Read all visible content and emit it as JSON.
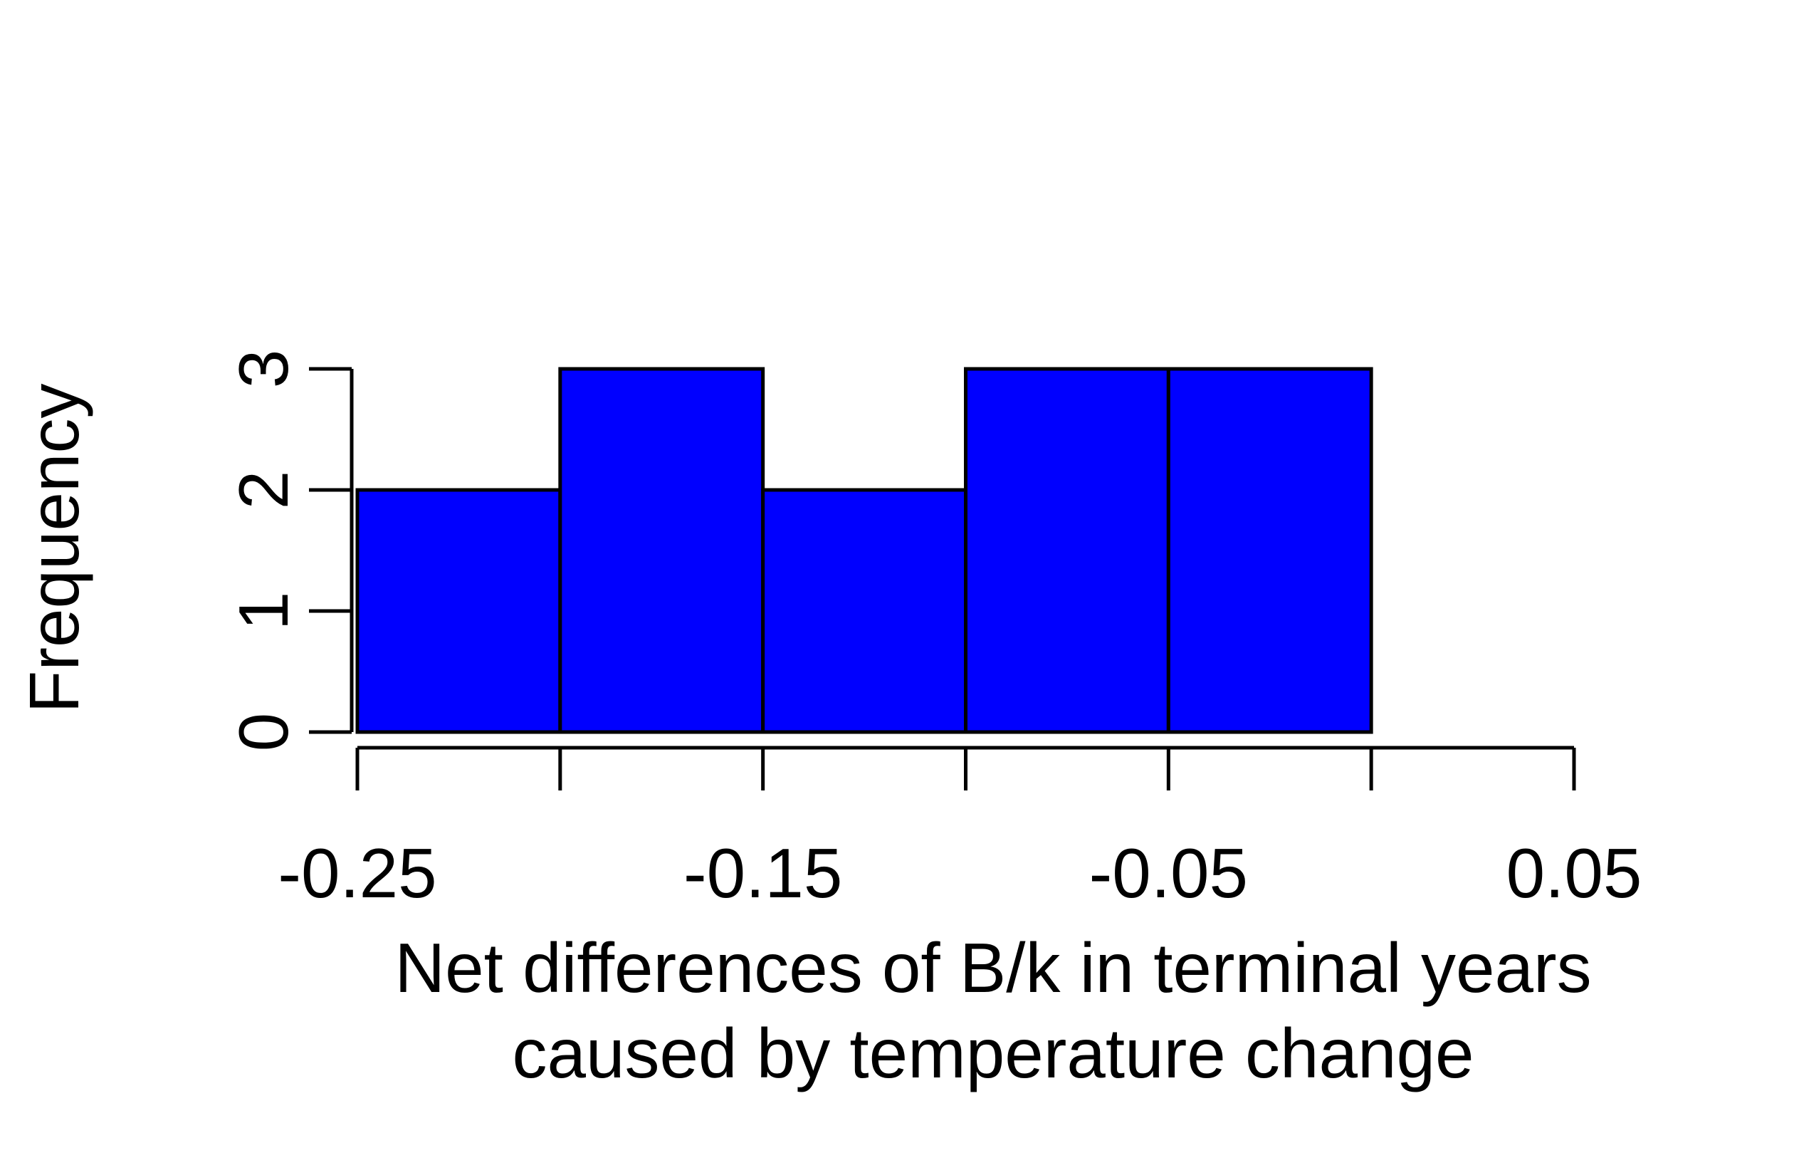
{
  "chart_data": {
    "type": "bar",
    "subtype": "histogram",
    "bins": [
      {
        "start": -0.25,
        "end": -0.2,
        "count": 2
      },
      {
        "start": -0.2,
        "end": -0.15,
        "count": 3
      },
      {
        "start": -0.15,
        "end": -0.1,
        "count": 2
      },
      {
        "start": -0.1,
        "end": -0.05,
        "count": 3
      },
      {
        "start": -0.05,
        "end": 0.0,
        "count": 3
      }
    ],
    "x_ticks": [
      -0.25,
      -0.2,
      -0.15,
      -0.1,
      -0.05,
      0.0,
      0.05
    ],
    "x_tick_labels": [
      {
        "value": -0.25,
        "label": "-0.25"
      },
      {
        "value": -0.15,
        "label": "-0.15"
      },
      {
        "value": -0.05,
        "label": "-0.05"
      },
      {
        "value": 0.05,
        "label": "0.05"
      }
    ],
    "y_ticks": [
      0,
      1,
      2,
      3
    ],
    "y_tick_labels": [
      "0",
      "1",
      "2",
      "3"
    ],
    "xlim": [
      -0.25,
      0.05
    ],
    "ylim": [
      0,
      3
    ],
    "xlabel_line1": "Net differences of B/k in terminal years",
    "xlabel_line2": "caused by temperature change",
    "ylabel": "Frequency",
    "grid": false,
    "legend": "none",
    "bar_color": "#0000ff",
    "edge_color": "#000000"
  }
}
